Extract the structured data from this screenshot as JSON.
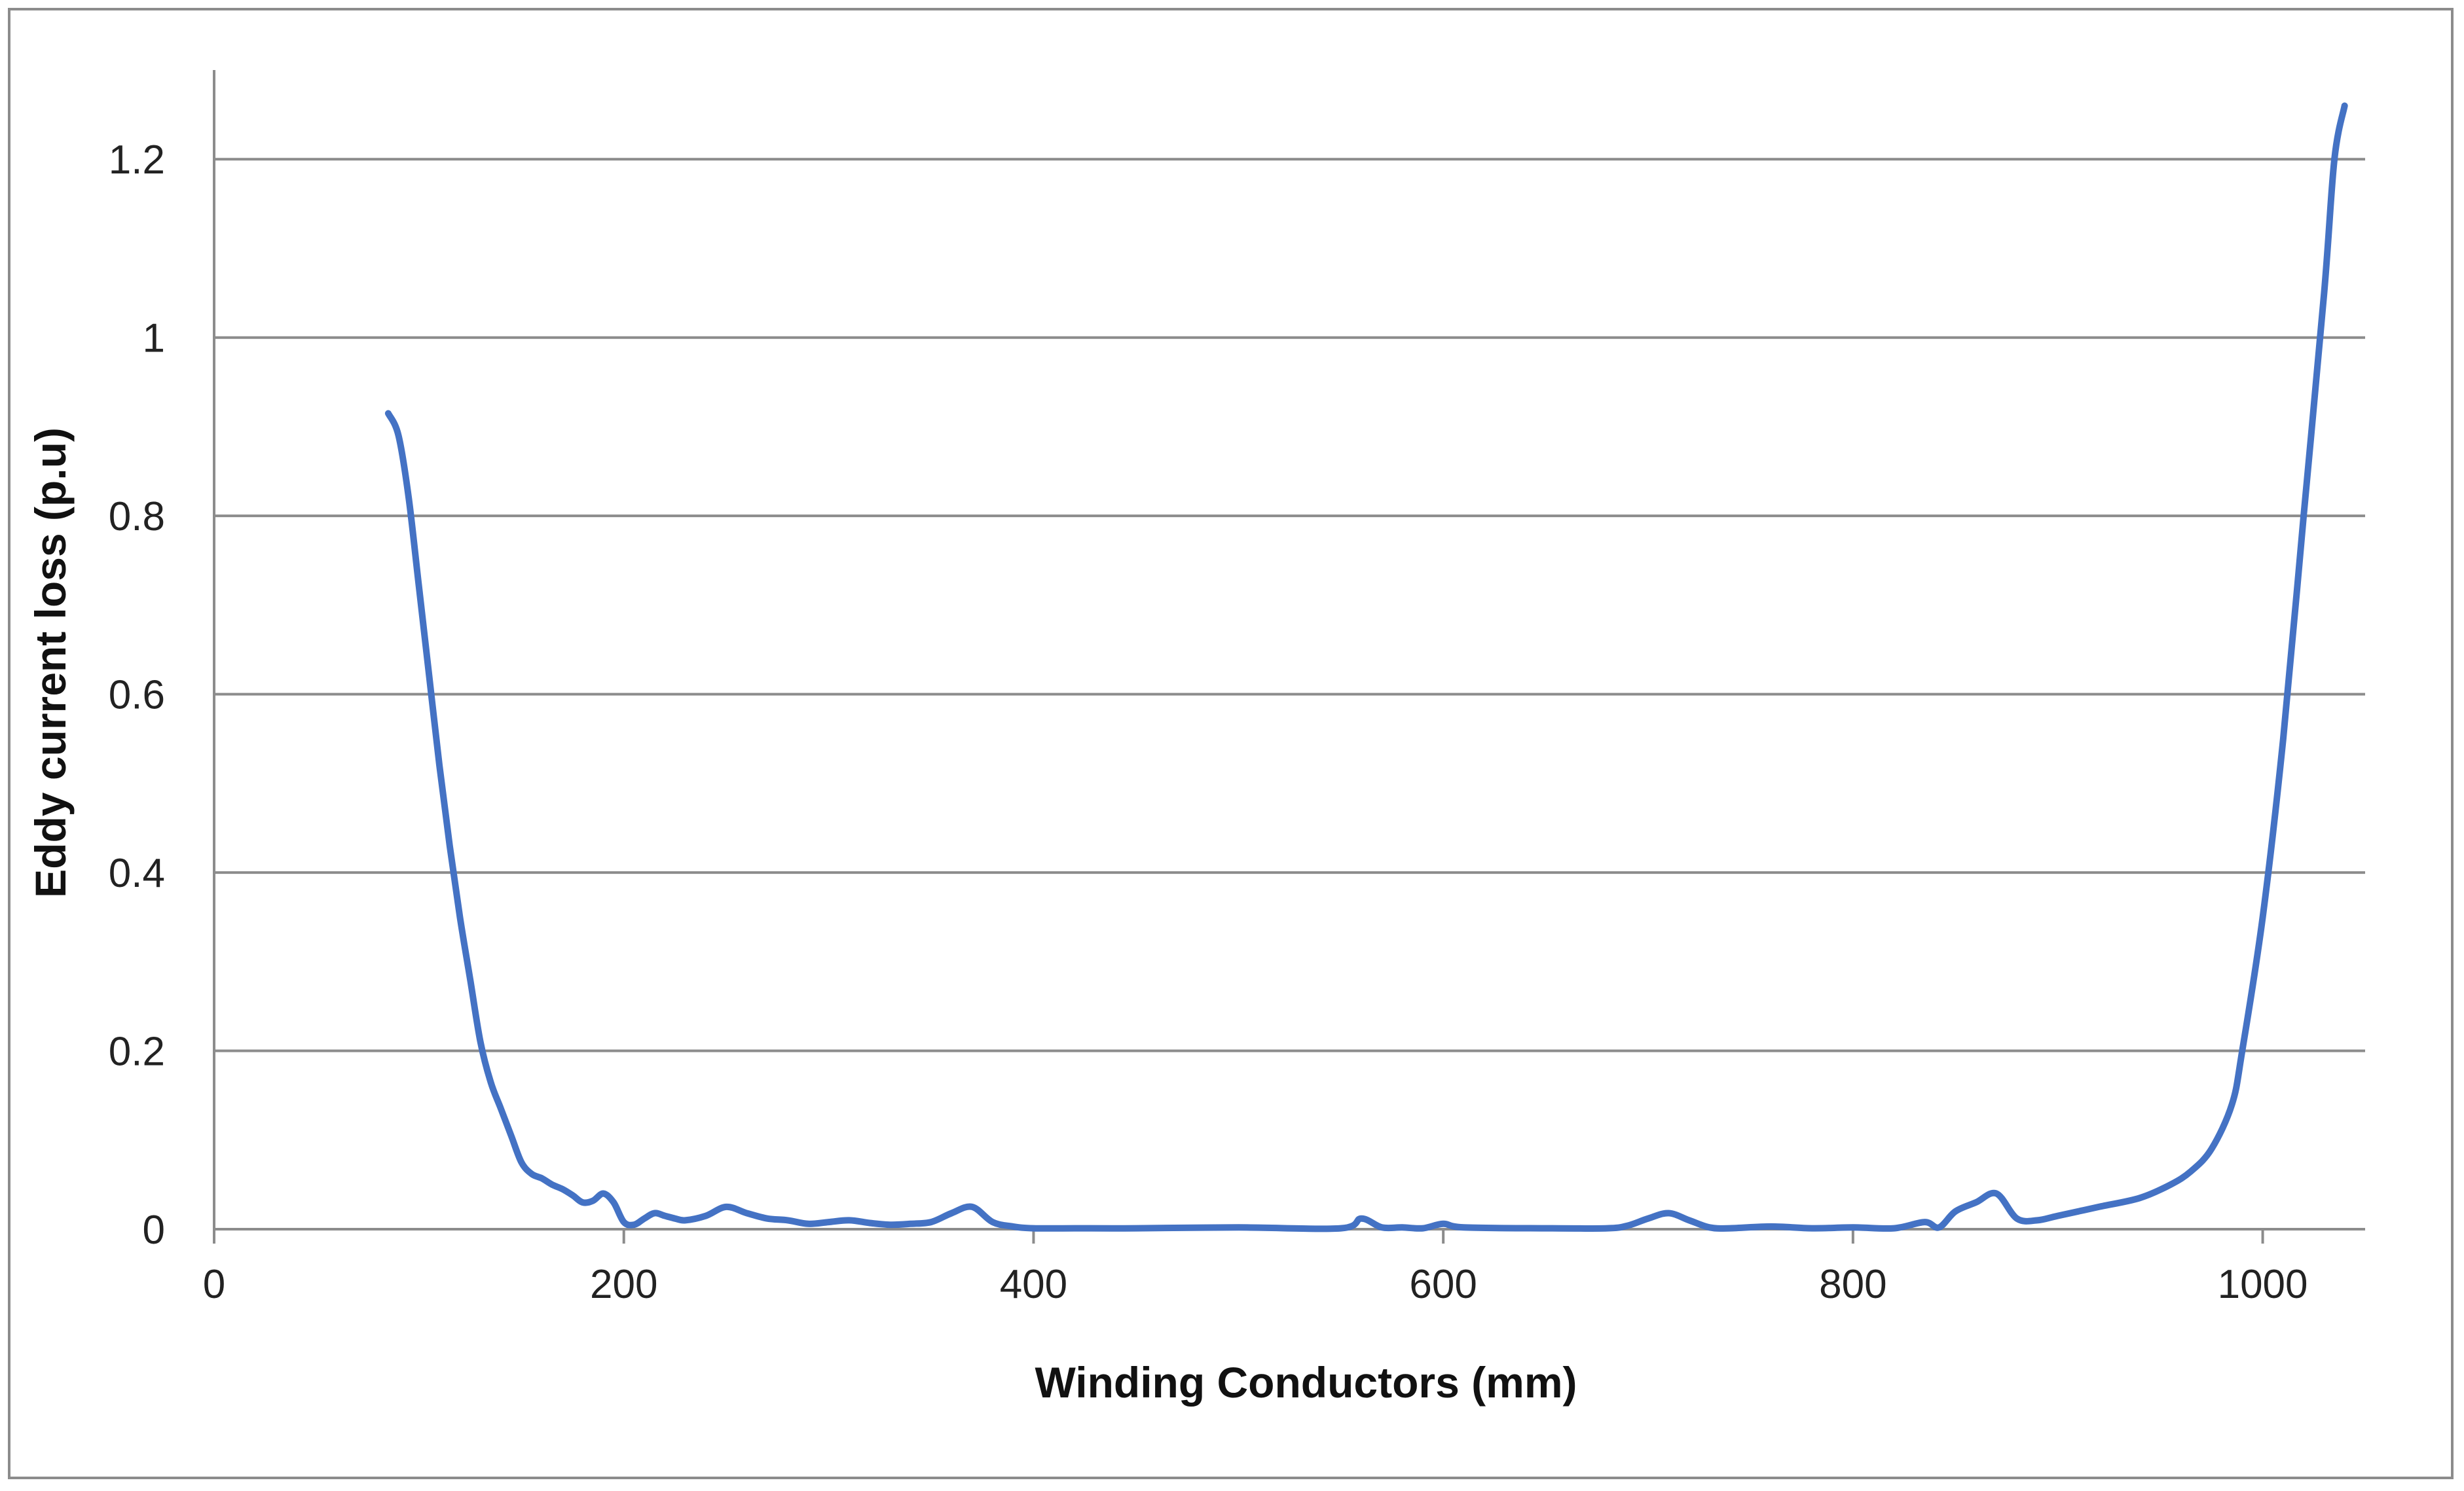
{
  "chart_data": {
    "type": "line",
    "title": "",
    "xlabel": "Winding Conductors (mm)",
    "ylabel": "Eddy current loss (p.u)",
    "xlim": [
      0,
      1050
    ],
    "ylim": [
      0,
      1.3
    ],
    "x_ticks": [
      0,
      200,
      400,
      600,
      800,
      1000
    ],
    "x_tick_labels": [
      "0",
      "200",
      "400",
      "600",
      "800",
      "1000"
    ],
    "y_ticks": [
      0,
      0.2,
      0.4,
      0.6,
      0.8,
      1.0,
      1.2
    ],
    "y_tick_labels": [
      "0",
      "0.2",
      "0.4",
      "0.6",
      "0.8",
      "1",
      "1.2"
    ],
    "grid": "horizontal",
    "legend": "none",
    "series": [
      {
        "color": "#4472c4",
        "x": [
          85,
          90,
          95,
          100,
          105,
          110,
          115,
          120,
          125,
          130,
          135,
          140,
          145,
          150,
          155,
          160,
          165,
          170,
          175,
          180,
          185,
          190,
          195,
          200,
          205,
          210,
          215,
          220,
          225,
          230,
          240,
          250,
          260,
          270,
          280,
          290,
          300,
          310,
          320,
          330,
          340,
          350,
          360,
          370,
          380,
          390,
          400,
          420,
          450,
          500,
          550,
          560,
          570,
          580,
          590,
          600,
          610,
          650,
          680,
          690,
          700,
          710,
          720,
          730,
          740,
          760,
          780,
          800,
          820,
          835,
          842,
          850,
          860,
          870,
          880,
          890,
          900,
          920,
          940,
          955,
          965,
          975,
          985,
          990,
          1000,
          1010,
          1020,
          1030,
          1035,
          1040
        ],
        "y": [
          0.915,
          0.89,
          0.82,
          0.72,
          0.62,
          0.52,
          0.43,
          0.35,
          0.28,
          0.21,
          0.165,
          0.135,
          0.105,
          0.075,
          0.062,
          0.057,
          0.05,
          0.045,
          0.038,
          0.03,
          0.032,
          0.04,
          0.03,
          0.008,
          0.005,
          0.012,
          0.018,
          0.015,
          0.012,
          0.01,
          0.015,
          0.025,
          0.018,
          0.012,
          0.01,
          0.006,
          0.008,
          0.01,
          0.007,
          0.005,
          0.006,
          0.008,
          0.018,
          0.025,
          0.008,
          0.003,
          0.001,
          0.001,
          0.001,
          0.002,
          0.001,
          0.012,
          0.002,
          0.002,
          0.001,
          0.006,
          0.002,
          0.001,
          0.001,
          0.004,
          0.012,
          0.018,
          0.01,
          0.002,
          0.001,
          0.003,
          0.001,
          0.002,
          0.001,
          0.008,
          0.002,
          0.02,
          0.03,
          0.04,
          0.012,
          0.01,
          0.015,
          0.025,
          0.035,
          0.05,
          0.065,
          0.09,
          0.14,
          0.2,
          0.35,
          0.55,
          0.8,
          1.05,
          1.2,
          1.26
        ]
      }
    ]
  }
}
